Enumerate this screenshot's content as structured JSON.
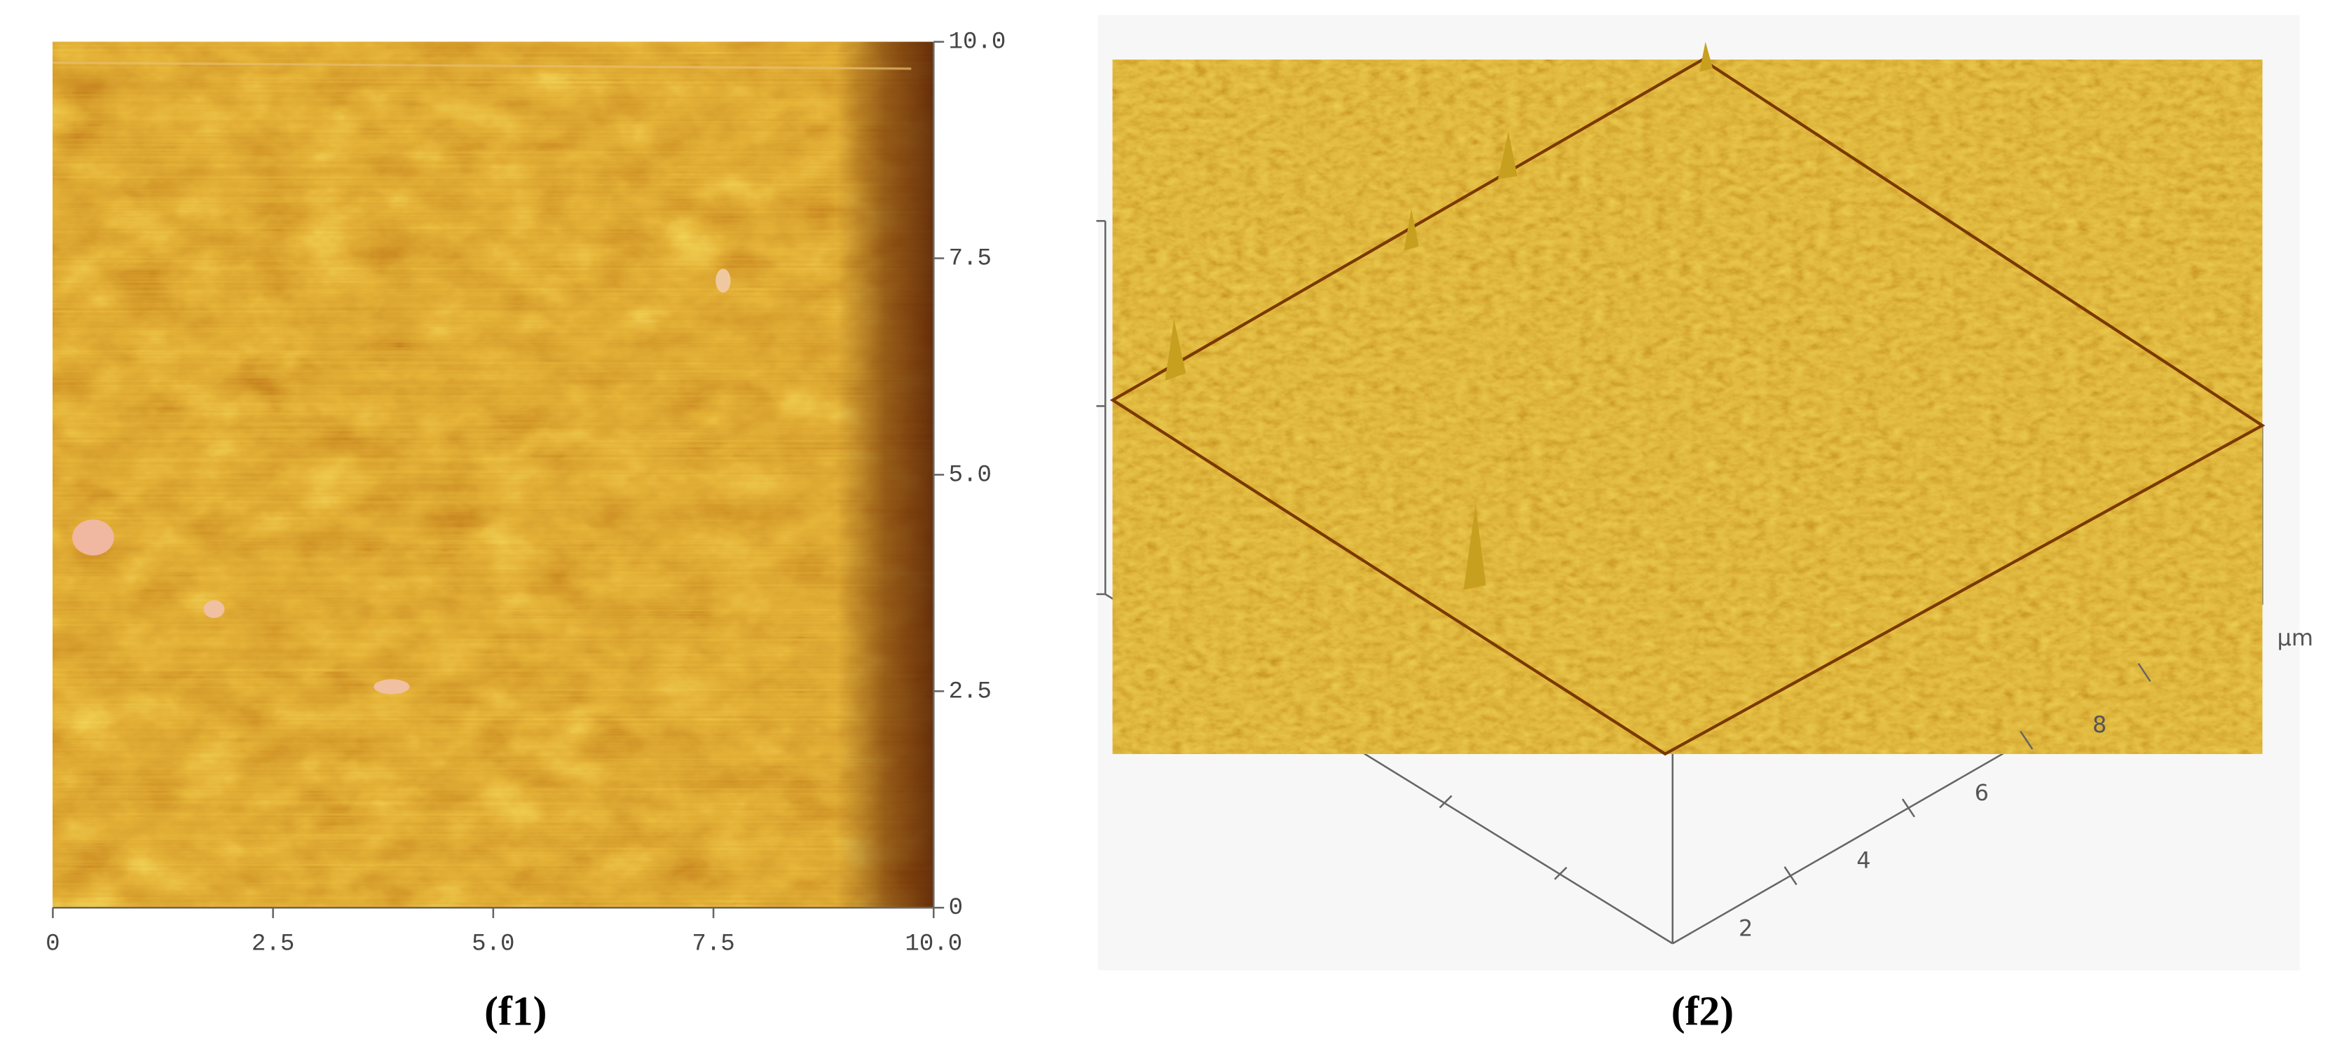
{
  "panels": [
    {
      "xlim": [
        0,
        10
      ],
      "ylim": [
        0,
        10
      ],
      "xticks": [
        0,
        2.5,
        {
          "value": 5,
          "label": "5.0"
        },
        7.5,
        {
          "value": 10,
          "label": "10.0"
        }
      ],
      "yticks": [
        0,
        2.5,
        {
          "value": 5,
          "label": "5.0"
        },
        7.5,
        {
          "value": 10,
          "label": "10.0"
        }
      ],
      "caption": "(f1)"
    },
    {
      "xlim": [
        0,
        10
      ],
      "xticks": [
        2,
        4,
        6,
        8
      ],
      "x_unit": "μm",
      "caption": "(f2)"
    }
  ]
}
